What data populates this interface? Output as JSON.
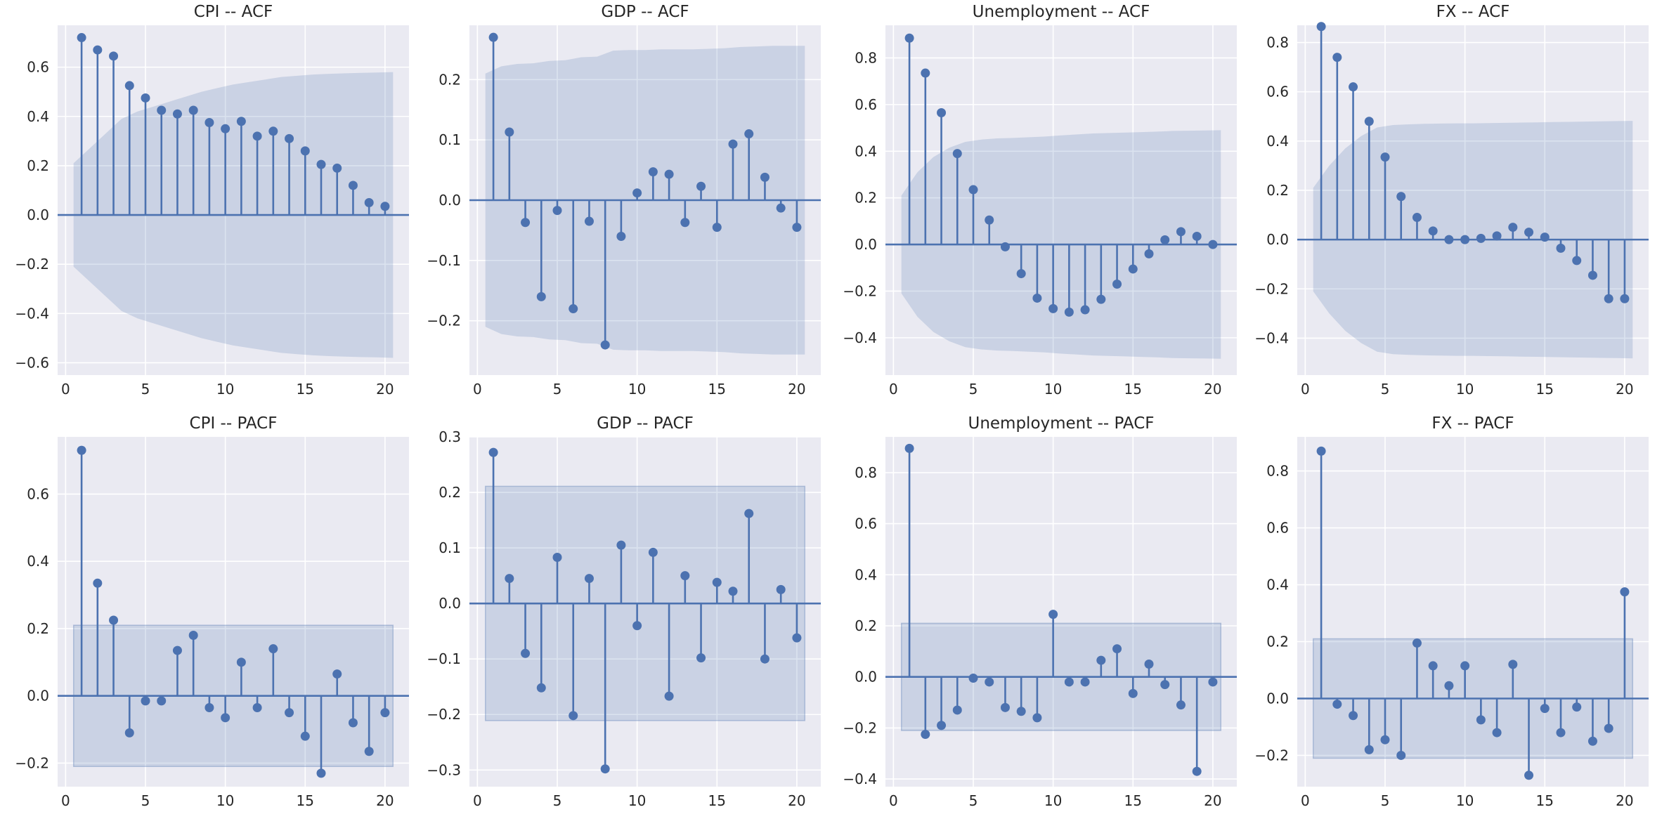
{
  "chart_data": [
    {
      "type": "stem",
      "title": "CPI -- ACF",
      "x": [
        1,
        2,
        3,
        4,
        5,
        6,
        7,
        8,
        9,
        10,
        11,
        12,
        13,
        14,
        15,
        16,
        17,
        18,
        19,
        20
      ],
      "values": [
        0.72,
        0.67,
        0.645,
        0.525,
        0.475,
        0.425,
        0.41,
        0.425,
        0.375,
        0.35,
        0.38,
        0.32,
        0.34,
        0.31,
        0.26,
        0.205,
        0.19,
        0.12,
        0.05,
        0.035
      ],
      "confidence_band": {
        "x": [
          0.5,
          1.5,
          2.5,
          3.5,
          4.5,
          5.5,
          6.5,
          7.5,
          8.5,
          9.5,
          10.5,
          11.5,
          12.5,
          13.5,
          14.5,
          15.5,
          16.5,
          17.5,
          18.5,
          19.5,
          20.5
        ],
        "upper": [
          0.21,
          0.27,
          0.33,
          0.39,
          0.42,
          0.44,
          0.46,
          0.48,
          0.5,
          0.515,
          0.53,
          0.54,
          0.55,
          0.56,
          0.565,
          0.57,
          0.573,
          0.575,
          0.577,
          0.578,
          0.58
        ]
      },
      "xlim": [
        -0.5,
        21.5
      ],
      "ylim": [
        -0.65,
        0.77
      ],
      "xticks": [
        0,
        5,
        10,
        15,
        20
      ],
      "xtick_labels": [
        "0",
        "5",
        "10",
        "15",
        "20"
      ],
      "yticks": [
        -0.6,
        -0.4,
        -0.2,
        0.0,
        0.2,
        0.4,
        0.6
      ],
      "ytick_labels": [
        "−0.6",
        "−0.4",
        "−0.2",
        "0.0",
        "0.2",
        "0.4",
        "0.6"
      ]
    },
    {
      "type": "stem",
      "title": "GDP -- ACF",
      "x": [
        1,
        2,
        3,
        4,
        5,
        6,
        7,
        8,
        9,
        10,
        11,
        12,
        13,
        14,
        15,
        16,
        17,
        18,
        19,
        20
      ],
      "values": [
        0.27,
        0.113,
        -0.037,
        -0.16,
        -0.017,
        -0.18,
        -0.035,
        -0.24,
        -0.06,
        0.012,
        0.047,
        0.043,
        -0.037,
        0.023,
        -0.045,
        0.093,
        0.11,
        0.038,
        -0.013,
        -0.045
      ],
      "confidence_band": {
        "x": [
          0.5,
          1.5,
          2.5,
          3.5,
          4.5,
          5.5,
          6.5,
          7.5,
          8.5,
          9.5,
          10.5,
          11.5,
          12.5,
          13.5,
          14.5,
          15.5,
          16.5,
          17.5,
          18.5,
          19.5,
          20.5
        ],
        "upper": [
          0.21,
          0.222,
          0.226,
          0.227,
          0.231,
          0.232,
          0.237,
          0.238,
          0.248,
          0.249,
          0.249,
          0.25,
          0.25,
          0.25,
          0.251,
          0.252,
          0.254,
          0.255,
          0.256,
          0.256,
          0.256
        ]
      },
      "xlim": [
        -0.5,
        21.5
      ],
      "ylim": [
        -0.29,
        0.29
      ],
      "xticks": [
        0,
        5,
        10,
        15,
        20
      ],
      "xtick_labels": [
        "0",
        "5",
        "10",
        "15",
        "20"
      ],
      "yticks": [
        -0.2,
        -0.1,
        0.0,
        0.1,
        0.2
      ],
      "ytick_labels": [
        "−0.2",
        "−0.1",
        "0.0",
        "0.1",
        "0.2"
      ]
    },
    {
      "type": "stem",
      "title": "Unemployment -- ACF",
      "x": [
        1,
        2,
        3,
        4,
        5,
        6,
        7,
        8,
        9,
        10,
        11,
        12,
        13,
        14,
        15,
        16,
        17,
        18,
        19,
        20
      ],
      "values": [
        0.885,
        0.735,
        0.565,
        0.39,
        0.235,
        0.105,
        -0.01,
        -0.125,
        -0.23,
        -0.275,
        -0.29,
        -0.28,
        -0.235,
        -0.17,
        -0.105,
        -0.04,
        0.02,
        0.055,
        0.035,
        0.0
      ],
      "confidence_band": {
        "x": [
          0.5,
          1.5,
          2.5,
          3.5,
          4.5,
          5.5,
          6.5,
          7.5,
          8.5,
          9.5,
          10.5,
          11.5,
          12.5,
          13.5,
          14.5,
          15.5,
          16.5,
          17.5,
          18.5,
          19.5,
          20.5
        ],
        "upper": [
          0.21,
          0.31,
          0.375,
          0.415,
          0.44,
          0.45,
          0.455,
          0.457,
          0.46,
          0.463,
          0.468,
          0.472,
          0.476,
          0.478,
          0.48,
          0.482,
          0.484,
          0.487,
          0.488,
          0.489,
          0.49
        ]
      },
      "xlim": [
        -0.5,
        21.5
      ],
      "ylim": [
        -0.56,
        0.94
      ],
      "xticks": [
        0,
        5,
        10,
        15,
        20
      ],
      "xtick_labels": [
        "0",
        "5",
        "10",
        "15",
        "20"
      ],
      "yticks": [
        -0.4,
        -0.2,
        0.0,
        0.2,
        0.4,
        0.6,
        0.8
      ],
      "ytick_labels": [
        "−0.4",
        "−0.2",
        "0.0",
        "0.2",
        "0.4",
        "0.6",
        "0.8"
      ]
    },
    {
      "type": "stem",
      "title": "FX -- ACF",
      "x": [
        1,
        2,
        3,
        4,
        5,
        6,
        7,
        8,
        9,
        10,
        11,
        12,
        13,
        14,
        15,
        16,
        17,
        18,
        19,
        20
      ],
      "values": [
        0.865,
        0.74,
        0.62,
        0.48,
        0.335,
        0.175,
        0.09,
        0.035,
        0.0,
        0.0,
        0.005,
        0.015,
        0.05,
        0.03,
        0.01,
        -0.035,
        -0.085,
        -0.145,
        -0.24,
        -0.24
      ],
      "confidence_band": {
        "x": [
          0.5,
          1.5,
          2.5,
          3.5,
          4.5,
          5.5,
          6.5,
          7.5,
          8.5,
          9.5,
          10.5,
          11.5,
          12.5,
          13.5,
          14.5,
          15.5,
          16.5,
          17.5,
          18.5,
          19.5,
          20.5
        ],
        "upper": [
          0.21,
          0.3,
          0.37,
          0.42,
          0.455,
          0.465,
          0.468,
          0.47,
          0.471,
          0.472,
          0.472,
          0.473,
          0.474,
          0.475,
          0.476,
          0.477,
          0.478,
          0.479,
          0.48,
          0.481,
          0.482
        ]
      },
      "xlim": [
        -0.5,
        21.5
      ],
      "ylim": [
        -0.55,
        0.87
      ],
      "xticks": [
        0,
        5,
        10,
        15,
        20
      ],
      "xtick_labels": [
        "0",
        "5",
        "10",
        "15",
        "20"
      ],
      "yticks": [
        -0.4,
        -0.2,
        0.0,
        0.2,
        0.4,
        0.6,
        0.8
      ],
      "ytick_labels": [
        "−0.4",
        "−0.2",
        "0.0",
        "0.2",
        "0.4",
        "0.6",
        "0.8"
      ]
    },
    {
      "type": "stem",
      "title": "CPI -- PACF",
      "x": [
        1,
        2,
        3,
        4,
        5,
        6,
        7,
        8,
        9,
        10,
        11,
        12,
        13,
        14,
        15,
        16,
        17,
        18,
        19,
        20
      ],
      "values": [
        0.73,
        0.335,
        0.225,
        -0.11,
        -0.015,
        -0.015,
        0.135,
        0.18,
        -0.035,
        -0.065,
        0.1,
        -0.035,
        0.14,
        -0.05,
        -0.12,
        -0.23,
        0.065,
        -0.08,
        -0.165,
        -0.05
      ],
      "confidence_band": {
        "x": [
          0.5,
          20.5
        ],
        "upper": [
          0.21,
          0.21
        ]
      },
      "xlim": [
        -0.5,
        21.5
      ],
      "ylim": [
        -0.27,
        0.77
      ],
      "xticks": [
        0,
        5,
        10,
        15,
        20
      ],
      "xtick_labels": [
        "0",
        "5",
        "10",
        "15",
        "20"
      ],
      "yticks": [
        -0.2,
        0.0,
        0.2,
        0.4,
        0.6
      ],
      "ytick_labels": [
        "−0.2",
        "0.0",
        "0.2",
        "0.4",
        "0.6"
      ]
    },
    {
      "type": "stem",
      "title": "GDP -- PACF",
      "x": [
        1,
        2,
        3,
        4,
        5,
        6,
        7,
        8,
        9,
        10,
        11,
        12,
        13,
        14,
        15,
        16,
        17,
        18,
        19,
        20
      ],
      "values": [
        0.272,
        0.045,
        -0.09,
        -0.152,
        0.083,
        -0.202,
        0.045,
        -0.298,
        0.105,
        -0.04,
        0.092,
        -0.167,
        0.05,
        -0.098,
        0.038,
        0.022,
        0.162,
        -0.1,
        0.025,
        -0.062
      ],
      "confidence_band": {
        "x": [
          0.5,
          20.5
        ],
        "upper": [
          0.211,
          0.211
        ]
      },
      "xlim": [
        -0.5,
        21.5
      ],
      "ylim": [
        -0.33,
        0.3
      ],
      "xticks": [
        0,
        5,
        10,
        15,
        20
      ],
      "xtick_labels": [
        "0",
        "5",
        "10",
        "15",
        "20"
      ],
      "yticks": [
        -0.3,
        -0.2,
        -0.1,
        0.0,
        0.1,
        0.2,
        0.3
      ],
      "ytick_labels": [
        "−0.3",
        "−0.2",
        "−0.1",
        "0.0",
        "0.1",
        "0.2",
        "0.3"
      ]
    },
    {
      "type": "stem",
      "title": "Unemployment -- PACF",
      "x": [
        1,
        2,
        3,
        4,
        5,
        6,
        7,
        8,
        9,
        10,
        11,
        12,
        13,
        14,
        15,
        16,
        17,
        18,
        19,
        20
      ],
      "values": [
        0.895,
        -0.225,
        -0.19,
        -0.13,
        -0.005,
        -0.02,
        -0.12,
        -0.135,
        -0.16,
        0.245,
        -0.02,
        -0.02,
        0.065,
        0.11,
        -0.065,
        0.05,
        -0.03,
        -0.11,
        -0.37,
        -0.02
      ],
      "confidence_band": {
        "x": [
          0.5,
          20.5
        ],
        "upper": [
          0.21,
          0.21
        ]
      },
      "xlim": [
        -0.5,
        21.5
      ],
      "ylim": [
        -0.43,
        0.94
      ],
      "xticks": [
        0,
        5,
        10,
        15,
        20
      ],
      "xtick_labels": [
        "0",
        "5",
        "10",
        "15",
        "20"
      ],
      "yticks": [
        -0.4,
        -0.2,
        0.0,
        0.2,
        0.4,
        0.6,
        0.8
      ],
      "ytick_labels": [
        "−0.4",
        "−0.2",
        "0.0",
        "0.2",
        "0.4",
        "0.6",
        "0.8"
      ]
    },
    {
      "type": "stem",
      "title": "FX -- PACF",
      "x": [
        1,
        2,
        3,
        4,
        5,
        6,
        7,
        8,
        9,
        10,
        11,
        12,
        13,
        14,
        15,
        16,
        17,
        18,
        19,
        20
      ],
      "values": [
        0.87,
        -0.02,
        -0.06,
        -0.18,
        -0.145,
        -0.2,
        0.195,
        0.115,
        0.045,
        0.115,
        -0.075,
        -0.12,
        0.12,
        -0.27,
        -0.035,
        -0.12,
        -0.03,
        -0.15,
        -0.105,
        0.375
      ],
      "confidence_band": {
        "x": [
          0.5,
          20.5
        ],
        "upper": [
          0.21,
          0.21
        ]
      },
      "xlim": [
        -0.5,
        21.5
      ],
      "ylim": [
        -0.31,
        0.92
      ],
      "xticks": [
        0,
        5,
        10,
        15,
        20
      ],
      "xtick_labels": [
        "0",
        "5",
        "10",
        "15",
        "20"
      ],
      "yticks": [
        -0.2,
        0.0,
        0.2,
        0.4,
        0.6,
        0.8
      ],
      "ytick_labels": [
        "−0.2",
        "0.0",
        "0.2",
        "0.4",
        "0.6",
        "0.8"
      ]
    }
  ]
}
